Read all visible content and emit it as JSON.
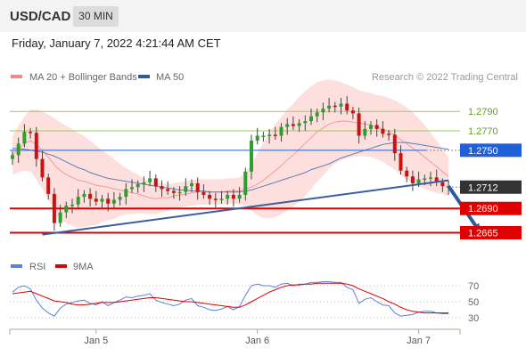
{
  "header": {
    "symbol": "USD/CAD",
    "timeframe": "30 MIN"
  },
  "timestamp": "Friday, January 7, 2022 4:21:44 AM CET",
  "legend": {
    "bollinger": {
      "label": "MA 20 + Bollinger Bands",
      "color": "#f08a8a"
    },
    "ma50": {
      "label": "MA 50",
      "color": "#2c5a9c"
    }
  },
  "watermark": "Research © 2022 Trading Central",
  "rsi_legend": {
    "rsi": {
      "label": "RSI",
      "color": "#5b82d6"
    },
    "ma": {
      "label": "9MA",
      "color": "#dd0000"
    }
  },
  "chart_data": [
    {
      "type": "candlestick",
      "ylim": [
        1.2648,
        1.2815
      ],
      "price_labels": [
        "1.2790",
        "1.2770",
        "1.2750",
        "1.2712",
        "1.2690",
        "1.2665"
      ],
      "levels": [
        {
          "value": 1.279,
          "label": "1.2790",
          "kind": "target",
          "color": "#9acd5a"
        },
        {
          "value": 1.277,
          "label": "1.2770",
          "kind": "target",
          "color": "#9acd5a"
        },
        {
          "value": 1.275,
          "label": "1.2750",
          "kind": "pivot",
          "color": "#1f5fd8"
        },
        {
          "value": 1.2712,
          "label": "1.2712",
          "kind": "last",
          "color": "#333333"
        },
        {
          "value": 1.269,
          "label": "1.2690",
          "kind": "support",
          "color": "#e00000"
        },
        {
          "value": 1.2665,
          "label": "1.2665",
          "kind": "support",
          "color": "#e00000"
        }
      ],
      "trendline": {
        "from_index": 5,
        "from_value": 1.2663,
        "to_index": 73,
        "to_value": 1.2719
      },
      "projection": {
        "from_index": 73,
        "from_value": 1.2713,
        "to_index": 78,
        "to_value": 1.2668
      },
      "x_tick_labels": [
        {
          "label": "Jan 5",
          "index": 14
        },
        {
          "label": "Jan 6",
          "index": 41
        },
        {
          "label": "Jan 7",
          "index": 68
        }
      ],
      "close": [
        1.2745,
        1.2757,
        1.2769,
        1.2768,
        1.2741,
        1.2722,
        1.2705,
        1.2675,
        1.2686,
        1.2693,
        1.2694,
        1.2702,
        1.2705,
        1.27,
        1.2697,
        1.27,
        1.2695,
        1.2699,
        1.2702,
        1.271,
        1.2712,
        1.2715,
        1.2717,
        1.2721,
        1.2713,
        1.271,
        1.2708,
        1.2706,
        1.2707,
        1.2713,
        1.2716,
        1.2707,
        1.2704,
        1.27,
        1.2699,
        1.27,
        1.2704,
        1.27,
        1.2704,
        1.2728,
        1.276,
        1.2765,
        1.2765,
        1.2766,
        1.2765,
        1.2774,
        1.2777,
        1.2775,
        1.2778,
        1.278,
        1.2785,
        1.2789,
        1.2793,
        1.2796,
        1.2795,
        1.2798,
        1.2791,
        1.2788,
        1.2765,
        1.2772,
        1.2776,
        1.2772,
        1.2767,
        1.2766,
        1.2747,
        1.2729,
        1.2723,
        1.2716,
        1.272,
        1.2721,
        1.2722,
        1.2717,
        1.2713,
        1.2712
      ],
      "ma20": [
        1.2745,
        1.2751,
        1.2757,
        1.276,
        1.2756,
        1.275,
        1.2743,
        1.2735,
        1.2729,
        1.2725,
        1.2722,
        1.2719,
        1.2718,
        1.2716,
        1.2714,
        1.2713,
        1.2712,
        1.271,
        1.2709,
        1.2708,
        1.2706,
        1.2705,
        1.2703,
        1.2701,
        1.27,
        1.2701,
        1.2701,
        1.2703,
        1.2704,
        1.2705,
        1.2706,
        1.2707,
        1.2707,
        1.2707,
        1.2707,
        1.2707,
        1.2708,
        1.2708,
        1.2708,
        1.271,
        1.2712,
        1.2715,
        1.2719,
        1.2724,
        1.2729,
        1.2734,
        1.274,
        1.2745,
        1.2751,
        1.2757,
        1.2763,
        1.2769,
        1.2773,
        1.2777,
        1.2779,
        1.278,
        1.278,
        1.2779,
        1.2778,
        1.2777,
        1.2776,
        1.2774,
        1.2772,
        1.2769,
        1.2766,
        1.2761,
        1.2757,
        1.2752,
        1.2748,
        1.2743,
        1.2738,
        1.2733,
        1.2728,
        1.2723
      ],
      "bb_width": [
        0.002,
        0.0024,
        0.0028,
        0.0032,
        0.0036,
        0.004,
        0.0044,
        0.0048,
        0.005,
        0.005,
        0.005,
        0.0049,
        0.0047,
        0.0044,
        0.0041,
        0.0037,
        0.0034,
        0.0031,
        0.0027,
        0.0024,
        0.0022,
        0.002,
        0.0018,
        0.0017,
        0.0016,
        0.0015,
        0.0014,
        0.0013,
        0.0013,
        0.0013,
        0.0013,
        0.0013,
        0.0013,
        0.0013,
        0.0013,
        0.0013,
        0.0013,
        0.0013,
        0.0014,
        0.0017,
        0.0024,
        0.0032,
        0.0039,
        0.0044,
        0.0048,
        0.005,
        0.0052,
        0.0053,
        0.0054,
        0.0054,
        0.0053,
        0.0051,
        0.0049,
        0.0046,
        0.0043,
        0.004,
        0.0038,
        0.0036,
        0.0034,
        0.0033,
        0.0033,
        0.0033,
        0.0034,
        0.0035,
        0.0036,
        0.0037,
        0.0037,
        0.0037,
        0.0035,
        0.0033,
        0.003,
        0.0027,
        0.0023,
        0.002
      ],
      "ma50": [
        1.2752,
        1.2752,
        1.2751,
        1.275,
        1.2749,
        1.2748,
        1.2746,
        1.2744,
        1.2741,
        1.2738,
        1.2735,
        1.2732,
        1.273,
        1.2727,
        1.2725,
        1.2723,
        1.2721,
        1.272,
        1.2719,
        1.2718,
        1.2717,
        1.2716,
        1.2715,
        1.2714,
        1.2713,
        1.2712,
        1.2711,
        1.271,
        1.2709,
        1.2709,
        1.2708,
        1.2708,
        1.2708,
        1.2707,
        1.2707,
        1.2707,
        1.2707,
        1.2707,
        1.2707,
        1.2708,
        1.2709,
        1.2711,
        1.2713,
        1.2715,
        1.2717,
        1.2719,
        1.2721,
        1.2723,
        1.2725,
        1.2727,
        1.273,
        1.2732,
        1.2734,
        1.2736,
        1.2739,
        1.2742,
        1.2744,
        1.2746,
        1.2748,
        1.275,
        1.2752,
        1.2754,
        1.2756,
        1.2757,
        1.2758,
        1.2758,
        1.2758,
        1.2757,
        1.2756,
        1.2755,
        1.2754,
        1.2753,
        1.2752,
        1.2751
      ]
    },
    {
      "type": "line",
      "ylim": [
        20,
        80
      ],
      "y_ticks": [
        {
          "value": 70,
          "label": "70"
        },
        {
          "value": 50,
          "label": "50"
        },
        {
          "value": 30,
          "label": "30"
        }
      ],
      "series": [
        {
          "name": "RSI",
          "values": [
            62,
            68,
            70,
            66,
            52,
            42,
            36,
            32,
            42,
            47,
            49,
            51,
            52,
            48,
            46,
            50,
            45,
            49,
            52,
            56,
            55,
            57,
            58,
            60,
            52,
            49,
            47,
            45,
            47,
            52,
            54,
            45,
            43,
            40,
            39,
            41,
            44,
            40,
            44,
            58,
            70,
            72,
            70,
            70,
            68,
            72,
            73,
            70,
            72,
            72,
            74,
            74,
            75,
            75,
            74,
            74,
            68,
            65,
            48,
            53,
            55,
            50,
            46,
            45,
            36,
            32,
            33,
            34,
            37,
            38,
            38,
            36,
            35,
            35
          ]
        },
        {
          "name": "9MA",
          "values": [
            60,
            61,
            62,
            63,
            60,
            57,
            54,
            51,
            50,
            49,
            47,
            46,
            46,
            47,
            48,
            49,
            49,
            49,
            50,
            51,
            52,
            53,
            54,
            55,
            55,
            54,
            53,
            52,
            51,
            50,
            50,
            49,
            48,
            47,
            46,
            45,
            44,
            43,
            43,
            46,
            50,
            54,
            58,
            62,
            65,
            68,
            70,
            71,
            71,
            72,
            72,
            73,
            73,
            73,
            73,
            73,
            72,
            70,
            66,
            63,
            60,
            57,
            54,
            50,
            47,
            43,
            40,
            38,
            37,
            36,
            36,
            36,
            36,
            36
          ]
        }
      ]
    }
  ]
}
